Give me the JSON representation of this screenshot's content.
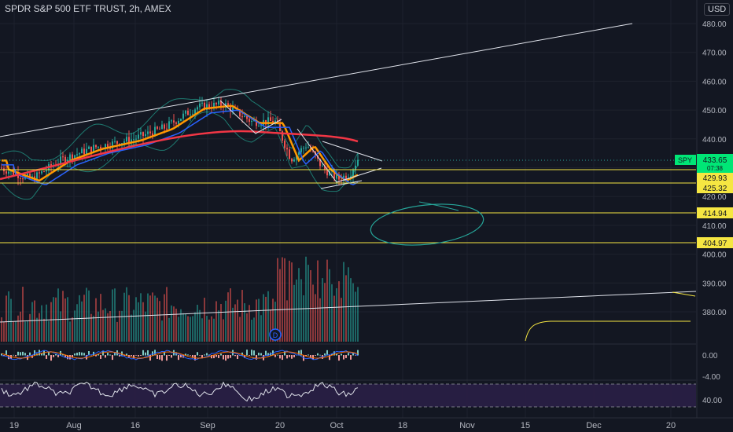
{
  "header": {
    "title": "SPDR S&P 500 ETF TRUST, 2h, AMEX",
    "currency_button": "USD"
  },
  "chart_data": {
    "type": "candlestick",
    "symbol": "SPY",
    "price_axis_ticks": [
      "480.00",
      "470.00",
      "460.00",
      "450.00",
      "440.00",
      "430.00",
      "420.00",
      "410.00",
      "400.00",
      "390.00",
      "380.00"
    ],
    "price_range": [
      372,
      484
    ],
    "time_labels": [
      {
        "label": "19"
      },
      {
        "label": "Aug"
      },
      {
        "label": "16"
      },
      {
        "label": "Sep"
      },
      {
        "label": "20"
      },
      {
        "label": "Oct"
      },
      {
        "label": "18"
      },
      {
        "label": "Nov"
      },
      {
        "label": "15"
      },
      {
        "label": "Dec"
      },
      {
        "label": "20"
      }
    ],
    "last_price": {
      "symbol": "SPY",
      "value": "433.65",
      "sub": "07:38"
    },
    "horizontal_levels": [
      "429.93",
      "425.32",
      "414.94",
      "404.97"
    ],
    "macd_ticks": [
      "0.00",
      "-4.00"
    ],
    "rsi_ticks": [
      "40.00"
    ],
    "dividend_marker": "D",
    "colors": {
      "background": "#131722",
      "up": "#26a69a",
      "down": "#ef5350",
      "ma_fast": "#ff9800",
      "ma_mid": "#2962ff",
      "ma_slow": "#f23645",
      "bollinger": "#1e7a70",
      "level": "#f5e642",
      "trendline": "#e0e3eb",
      "ellipse": "#26a69a",
      "rsi_band": "#2a1f46",
      "rsi_line": "#e0e3eb",
      "macd_line": "#2962ff",
      "signal_line": "#ff6d00",
      "price_label": "#00e676"
    }
  }
}
